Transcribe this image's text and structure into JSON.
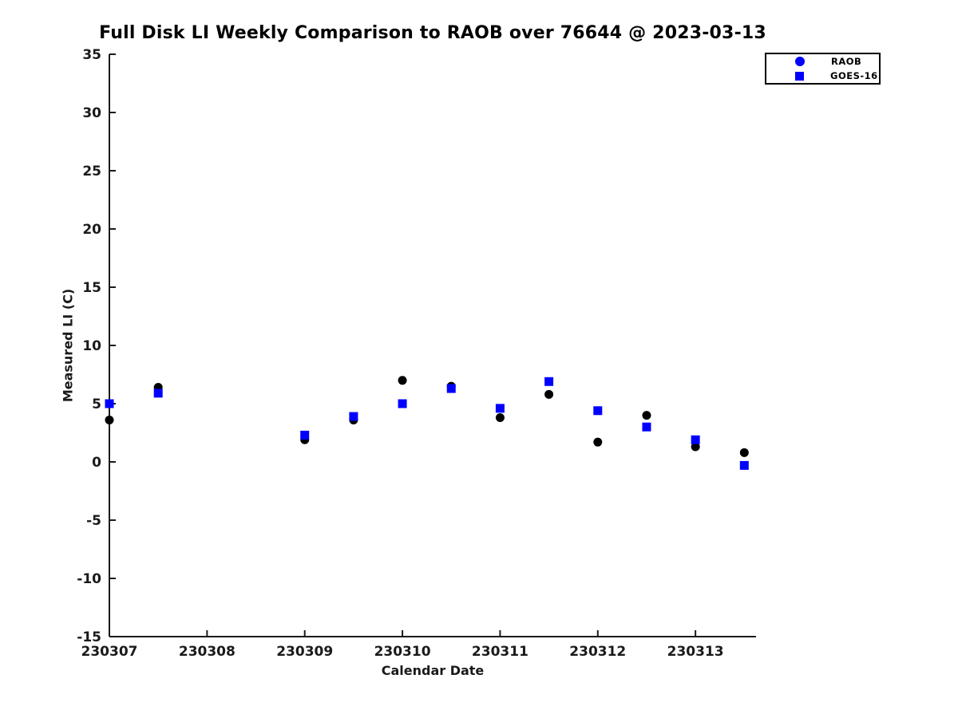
{
  "figure": {
    "background": "#ffffff"
  },
  "chart_data": {
    "type": "scatter",
    "title": "Full Disk LI Weekly Comparison to RAOB over 76644 @ 2023-03-13",
    "xlabel": "Calendar Date",
    "ylabel": "Measured LI (C)",
    "xlim": [
      230307,
      230313.62
    ],
    "ylim": [
      -15,
      35
    ],
    "xticks": [
      230307,
      230308,
      230309,
      230310,
      230311,
      230312,
      230313
    ],
    "yticks": [
      -15,
      -10,
      -5,
      0,
      5,
      10,
      15,
      20,
      25,
      30,
      35
    ],
    "grid": false,
    "legend_position": "top-right-outside",
    "axis_color": "#1a1a1a",
    "x": [
      230307,
      230307.5,
      230309,
      230309.5,
      230310,
      230310.5,
      230311,
      230311.5,
      230312,
      230312.5,
      230313,
      230313.5
    ],
    "series": [
      {
        "name": "RAOB",
        "marker": "circle",
        "color": "#000000",
        "legend_color": "#0000ff",
        "values": [
          3.6,
          6.4,
          1.9,
          3.6,
          7.0,
          6.5,
          3.8,
          5.8,
          1.7,
          4.0,
          1.3,
          0.8
        ]
      },
      {
        "name": "GOES-16",
        "marker": "square",
        "color": "#0000ff",
        "legend_color": "#0000ff",
        "values": [
          5.0,
          5.9,
          2.3,
          3.9,
          5.0,
          6.3,
          4.6,
          6.9,
          4.4,
          3.0,
          1.9,
          -0.3
        ]
      }
    ]
  }
}
